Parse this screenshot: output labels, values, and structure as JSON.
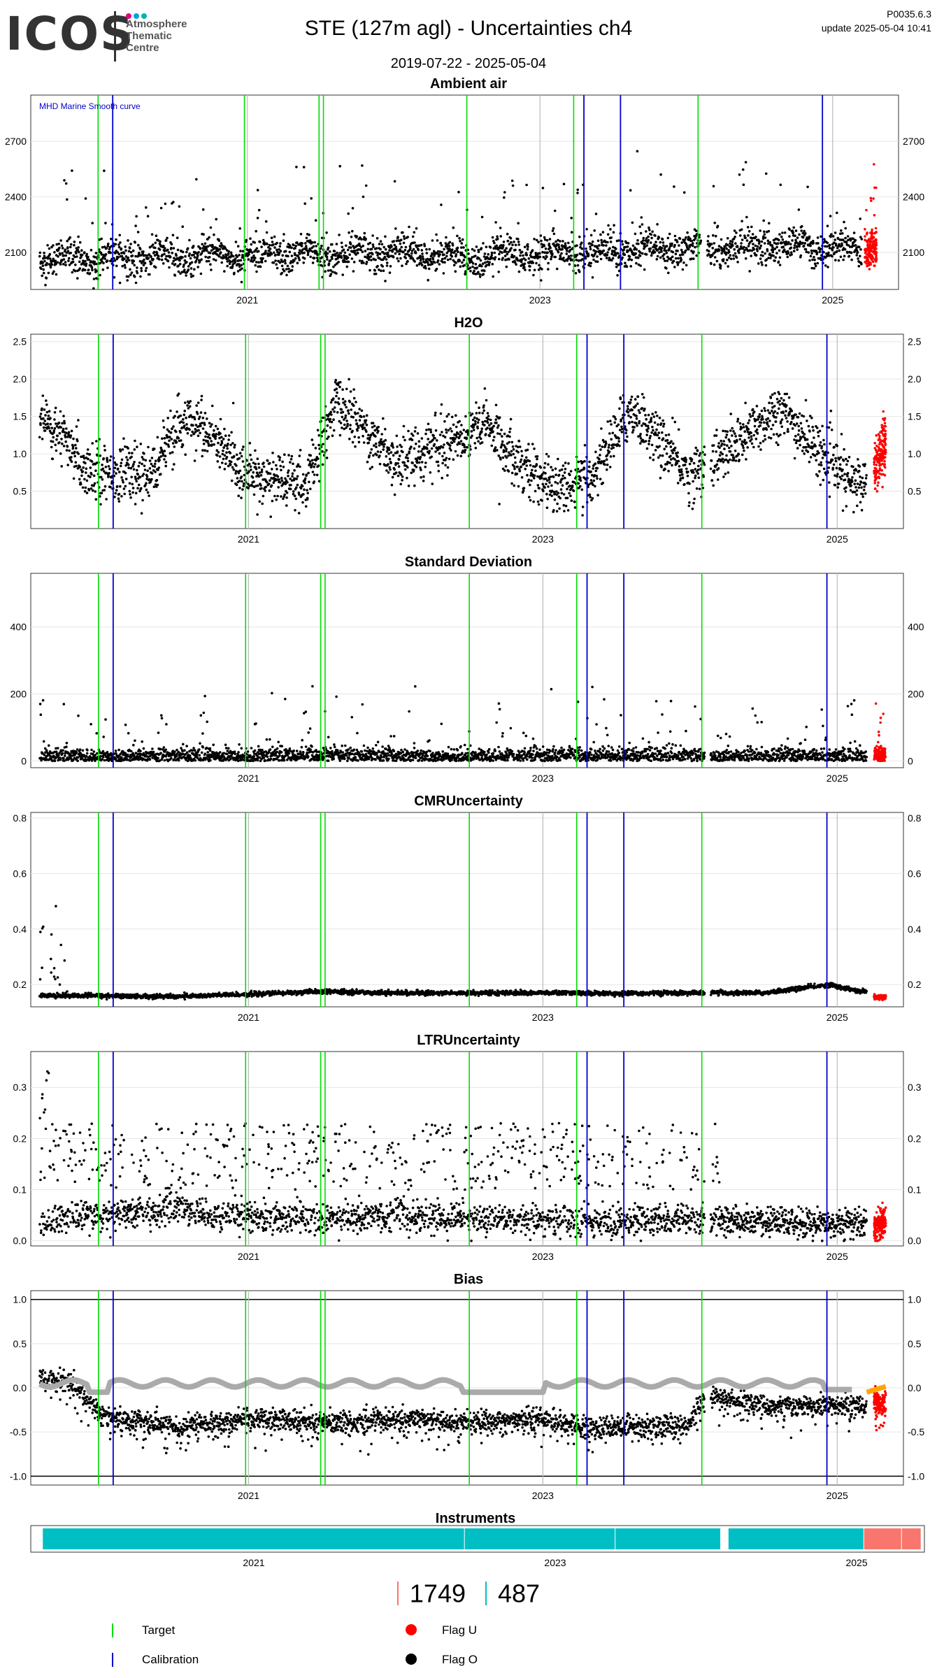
{
  "header": {
    "logo_text": "ICOS",
    "logo_sub": [
      "Atmosphere",
      "Thematic",
      "Centre"
    ],
    "logo_dot_colors": [
      "#e6007e",
      "#00a0e3",
      "#00b3b0"
    ],
    "title": "STE  (127m agl) - Uncertainties ch4",
    "date_range": "2019-07-22 - 2025-05-04",
    "version": "P0035.6.3",
    "update": "update  2025-05-04 10:41"
  },
  "colors": {
    "target": "#00dd00",
    "calibration": "#0000cc",
    "flag_u": "#ff0000",
    "flag_o": "#000000",
    "gray_year": "#bbbbbb",
    "instrument_1": "#00bfc4",
    "instrument_2": "#f8766d",
    "bias_smooth": "#aaaaaa",
    "bias_recent": "#ffa500"
  },
  "vlines": {
    "target_years": [
      2019.98,
      2020.98,
      2021.49,
      2021.52,
      2022.5,
      2023.23,
      2024.08
    ],
    "calibration_years": [
      2020.08,
      2023.3,
      2023.55,
      2024.93
    ],
    "year_ticks": [
      2021,
      2023,
      2025
    ]
  },
  "chart_data": [
    {
      "type": "scatter",
      "title": "Ambient air",
      "annotation": "MHD Marine Smooth curve",
      "ylim": [
        1900,
        2950
      ],
      "yticks": [
        2100,
        2400,
        2700
      ],
      "xticks": [
        "2021",
        "2023",
        "2025"
      ],
      "series": [
        {
          "name": "Flag O",
          "x": [
            2019.6,
            2020.0,
            2020.5,
            2021.0,
            2021.5,
            2022.0,
            2022.5,
            2023.0,
            2023.5,
            2024.0,
            2024.5,
            2024.9,
            2025.2
          ],
          "values": [
            2060,
            2070,
            2080,
            2085,
            2090,
            2100,
            2070,
            2095,
            2110,
            2120,
            2130,
            2140,
            2120
          ]
        },
        {
          "name": "Flag U",
          "x": [
            2025.22,
            2025.3
          ],
          "values": [
            2100,
            2130
          ]
        }
      ]
    },
    {
      "type": "scatter",
      "title": "H2O",
      "ylim": [
        0,
        2.6
      ],
      "yticks": [
        0.5,
        1.0,
        1.5,
        2.0,
        2.5
      ],
      "xticks": [
        "2021",
        "2023",
        "2025"
      ],
      "series": [
        {
          "name": "Flag O",
          "x": [
            2019.6,
            2019.9,
            2020.3,
            2020.6,
            2021.0,
            2021.4,
            2021.6,
            2022.0,
            2022.4,
            2022.6,
            2023.0,
            2023.3,
            2023.6,
            2024.0,
            2024.3,
            2024.6,
            2024.9,
            2025.1
          ],
          "values": [
            1.5,
            0.8,
            0.7,
            1.5,
            0.7,
            0.6,
            1.7,
            0.9,
            1.2,
            1.4,
            0.6,
            0.6,
            1.6,
            0.7,
            1.1,
            1.6,
            1.0,
            0.6
          ]
        },
        {
          "name": "Flag U",
          "x": [
            2025.25,
            2025.33
          ],
          "values": [
            0.8,
            1.2
          ]
        }
      ]
    },
    {
      "type": "scatter",
      "title": "Standard Deviation",
      "ylim": [
        -20,
        560
      ],
      "yticks": [
        0,
        200,
        400
      ],
      "xticks": [
        "2021",
        "2023",
        "2025"
      ],
      "series": [
        {
          "name": "Flag O",
          "x": [
            2019.6,
            2020.0,
            2020.4,
            2020.9,
            2021.3,
            2021.8,
            2022.2,
            2022.6,
            2023.0,
            2023.4,
            2023.7,
            2024.1,
            2024.5,
            2024.9,
            2025.1
          ],
          "values": [
            30,
            25,
            35,
            30,
            28,
            32,
            30,
            27,
            30,
            28,
            35,
            30,
            28,
            32,
            30
          ]
        },
        {
          "name": "Flag U",
          "x": [
            2025.25,
            2025.33
          ],
          "values": [
            30,
            40
          ]
        }
      ]
    },
    {
      "type": "scatter",
      "title": "CMRUncertainty",
      "ylim": [
        0.12,
        0.82
      ],
      "yticks": [
        0.2,
        0.4,
        0.6,
        0.8
      ],
      "xticks": [
        "2021",
        "2023",
        "2025"
      ],
      "series": [
        {
          "name": "Flag O",
          "x": [
            2019.6,
            2019.9,
            2020.5,
            2021.0,
            2021.5,
            2022.0,
            2022.5,
            2023.0,
            2023.5,
            2024.0,
            2024.5,
            2024.95,
            2025.15
          ],
          "values": [
            0.16,
            0.16,
            0.157,
            0.165,
            0.175,
            0.17,
            0.17,
            0.17,
            0.168,
            0.17,
            0.17,
            0.2,
            0.175
          ]
        },
        {
          "name": "Flag U",
          "x": [
            2025.25,
            2025.33
          ],
          "values": [
            0.155,
            0.155
          ]
        }
      ]
    },
    {
      "type": "scatter",
      "title": "LTRUncertainty",
      "ylim": [
        -0.01,
        0.37
      ],
      "yticks": [
        0.0,
        0.1,
        0.2,
        0.3
      ],
      "xticks": [
        "2021",
        "2023",
        "2025"
      ],
      "series": [
        {
          "name": "Flag O",
          "x": [
            2019.6,
            2020.0,
            2020.5,
            2021.0,
            2021.5,
            2022.0,
            2022.5,
            2023.0,
            2023.5,
            2024.0,
            2024.5,
            2024.9
          ],
          "values": [
            0.04,
            0.05,
            0.06,
            0.05,
            0.04,
            0.05,
            0.04,
            0.04,
            0.04,
            0.04,
            0.035,
            0.035
          ]
        },
        {
          "name": "Flag U",
          "x": [
            2025.25,
            2025.33
          ],
          "values": [
            0.03,
            0.04
          ]
        }
      ]
    },
    {
      "type": "line",
      "title": "Bias",
      "ylim": [
        -1.1,
        1.1
      ],
      "yticks": [
        -1.0,
        -0.5,
        0.0,
        0.5,
        1.0
      ],
      "xticks": [
        "2021",
        "2023",
        "2025"
      ],
      "series": [
        {
          "name": "Flag O",
          "x": [
            2019.6,
            2019.8,
            2020.0,
            2020.5,
            2021.0,
            2021.5,
            2022.0,
            2022.5,
            2023.0,
            2023.3,
            2023.6,
            2024.0,
            2024.1,
            2024.5,
            2024.9,
            2025.2
          ],
          "values": [
            0.1,
            0.05,
            -0.3,
            -0.45,
            -0.35,
            -0.4,
            -0.35,
            -0.4,
            -0.35,
            -0.45,
            -0.45,
            -0.4,
            -0.1,
            -0.2,
            -0.2,
            -0.2
          ]
        },
        {
          "name": "Flag U",
          "x": [
            2025.25,
            2025.33
          ],
          "values": [
            -0.15,
            -0.2
          ]
        }
      ]
    },
    {
      "type": "bar",
      "title": "Instruments",
      "xticks": [
        "2021",
        "2023",
        "2025"
      ],
      "segments": [
        {
          "start": 2019.6,
          "end": 2022.4,
          "instrument": "487"
        },
        {
          "start": 2022.4,
          "end": 2023.4,
          "instrument": "487"
        },
        {
          "start": 2023.4,
          "end": 2024.1,
          "instrument": "487"
        },
        {
          "start": 2024.15,
          "end": 2025.05,
          "instrument": "487"
        },
        {
          "start": 2025.05,
          "end": 2025.3,
          "instrument": "1749"
        },
        {
          "start": 2025.3,
          "end": 2025.43,
          "instrument": "1749"
        }
      ]
    }
  ],
  "instrument_legend": [
    {
      "label": "1749",
      "color": "#f8766d"
    },
    {
      "label": "487",
      "color": "#00bfc4"
    }
  ],
  "legend": {
    "target": "Target",
    "calibration": "Calibration",
    "flag_u": "Flag U",
    "flag_o": "Flag O"
  }
}
